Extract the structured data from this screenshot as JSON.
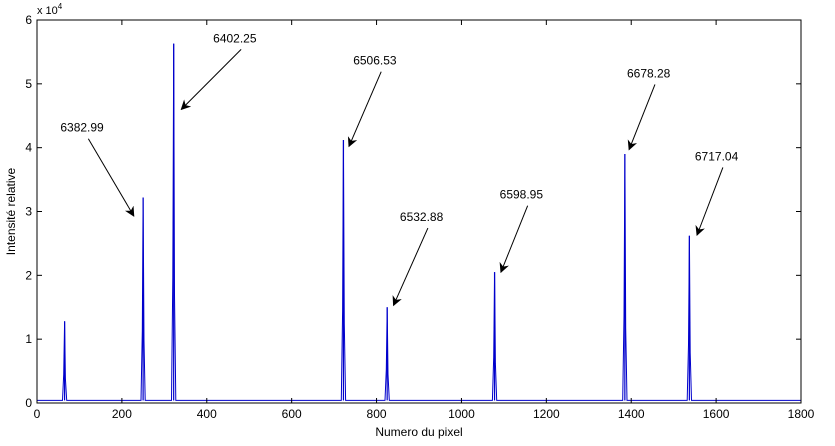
{
  "chart_data": {
    "type": "line",
    "title": "",
    "xlabel": "Numero du pixel",
    "ylabel": "Intensité relative",
    "xlim": [
      0,
      1800
    ],
    "ylim": [
      0,
      6
    ],
    "y_scale_factor": "x 10",
    "y_scale_exponent": "4",
    "grid": false,
    "legend": "none",
    "x_ticks": [
      "0",
      "200",
      "400",
      "600",
      "800",
      "1000",
      "1200",
      "1400",
      "1600",
      "1800"
    ],
    "y_ticks": [
      "0",
      "1",
      "2",
      "3",
      "4",
      "5",
      "6"
    ],
    "line_color": "#0000cc",
    "baseline": 0.04,
    "series": [
      {
        "peaks": [
          {
            "x": 65,
            "y": 1.28
          },
          {
            "x": 250,
            "y": 3.22
          },
          {
            "x": 322,
            "y": 5.63
          },
          {
            "x": 722,
            "y": 4.12
          },
          {
            "x": 825,
            "y": 1.5
          },
          {
            "x": 1078,
            "y": 2.05
          },
          {
            "x": 1385,
            "y": 3.9
          },
          {
            "x": 1537,
            "y": 2.62
          }
        ]
      }
    ],
    "annotations": [
      {
        "text": "6382.99",
        "text_x": 55,
        "text_y": 4.25,
        "arrow_x": 228,
        "arrow_y": 2.93
      },
      {
        "text": "6402.25",
        "text_x": 415,
        "text_y": 5.65,
        "arrow_x": 340,
        "arrow_y": 4.6
      },
      {
        "text": "6506.53",
        "text_x": 745,
        "text_y": 5.3,
        "arrow_x": 735,
        "arrow_y": 4.02
      },
      {
        "text": "6532.88",
        "text_x": 855,
        "text_y": 2.85,
        "arrow_x": 840,
        "arrow_y": 1.53
      },
      {
        "text": "6598.95",
        "text_x": 1090,
        "text_y": 3.2,
        "arrow_x": 1093,
        "arrow_y": 2.05
      },
      {
        "text": "6678.28",
        "text_x": 1390,
        "text_y": 5.1,
        "arrow_x": 1395,
        "arrow_y": 3.97
      },
      {
        "text": "6717.04",
        "text_x": 1550,
        "text_y": 3.8,
        "arrow_x": 1555,
        "arrow_y": 2.63
      }
    ]
  }
}
